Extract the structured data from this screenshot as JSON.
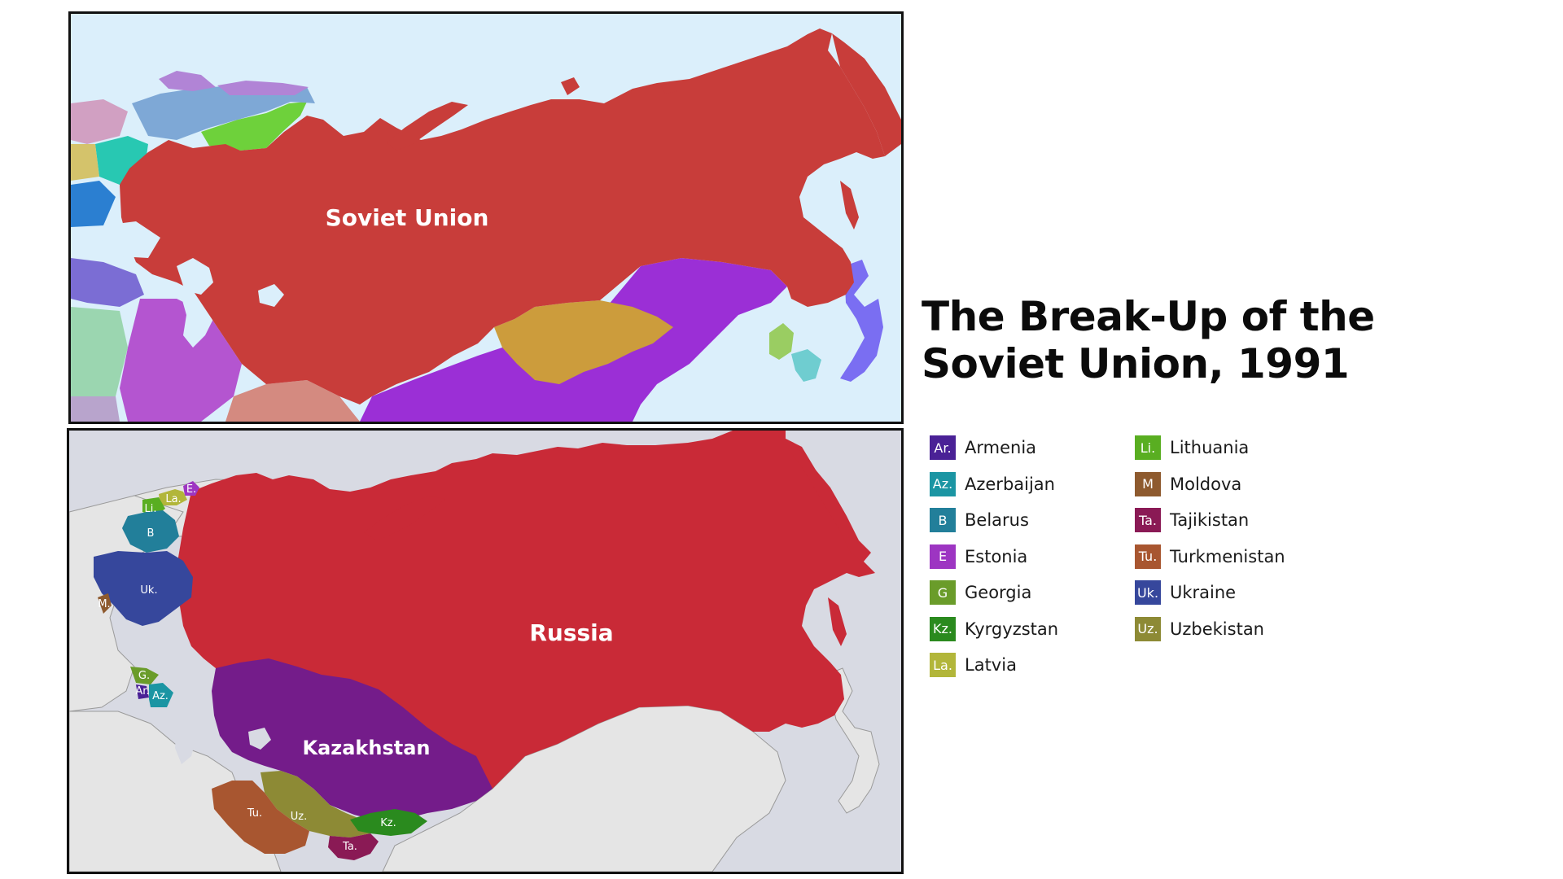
{
  "title": {
    "line1": "The Break-Up of the",
    "line2": "Soviet Union, 1991"
  },
  "top_map": {
    "label": "Soviet Union",
    "colors": {
      "soviet_union": "#c83d3a",
      "sea": "#dbeffb",
      "china": "#9b2fd6",
      "mongolia": "#cc9c3c",
      "japan": "#7a6ef2",
      "north_korea": "#9acd62",
      "south_korea": "#6fcdd0",
      "finland": "#6ed13b",
      "sweden_norway": "#7ea8d6",
      "svalbard": "#b184d6",
      "poland": "#2b7fd1",
      "iran": "#b455d0",
      "turkey": "#7b6dd4",
      "afghanistan": "#d48a80"
    }
  },
  "bottom_map": {
    "labels": {
      "russia": "Russia",
      "kazakhstan": "Kazakhstan"
    },
    "abbreviations": {
      "lithuania": "Li.",
      "latvia": "La.",
      "estonia": "E.",
      "belarus": "B",
      "moldova": "M.",
      "ukraine": "Uk.",
      "georgia": "G.",
      "armenia": "Ar.",
      "azerbaijan": "Az.",
      "turkmenistan": "Tu.",
      "uzbekistan": "Uz.",
      "kyrgyzstan": "Kz.",
      "tajikistan": "Ta."
    },
    "colors": {
      "russia": "#c92a37",
      "kazakhstan": "#741c8a",
      "land_other": "#e5e5e5",
      "sea": "#d8dae3"
    }
  },
  "legend": {
    "column1": [
      {
        "abbr": "Ar.",
        "name": "Armenia",
        "color": "#4a2196"
      },
      {
        "abbr": "Az.",
        "name": "Azerbaijan",
        "color": "#1b95a3"
      },
      {
        "abbr": "B",
        "name": "Belarus",
        "color": "#227f9a"
      },
      {
        "abbr": "E",
        "name": "Estonia",
        "color": "#9d35c2"
      },
      {
        "abbr": "G",
        "name": "Georgia",
        "color": "#6a9c2a"
      },
      {
        "abbr": "Kz.",
        "name": "Kyrgyzstan",
        "color": "#2a8a1e"
      },
      {
        "abbr": "La.",
        "name": "Latvia",
        "color": "#b2b63a"
      }
    ],
    "column2": [
      {
        "abbr": "Li.",
        "name": "Lithuania",
        "color": "#59ae21"
      },
      {
        "abbr": "M",
        "name": "Moldova",
        "color": "#8e5a2e"
      },
      {
        "abbr": "Ta.",
        "name": "Tajikistan",
        "color": "#8a1a55"
      },
      {
        "abbr": "Tu.",
        "name": "Turkmenistan",
        "color": "#a85630"
      },
      {
        "abbr": "Uk.",
        "name": "Ukraine",
        "color": "#36479c"
      },
      {
        "abbr": "Uz.",
        "name": "Uzbekistan",
        "color": "#8d8a35"
      }
    ]
  }
}
